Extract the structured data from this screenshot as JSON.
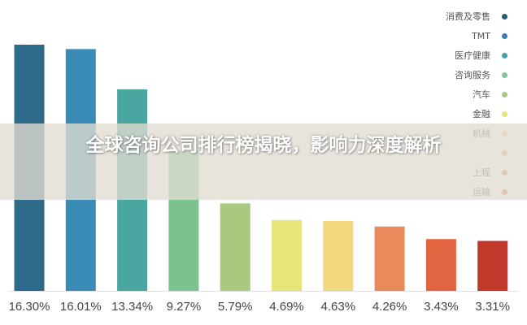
{
  "overlay_title": "全球咨询公司排行榜揭晓，影响力深度解析",
  "chart_data": {
    "type": "bar",
    "title": "",
    "xlabel": "",
    "ylabel": "",
    "ylim": [
      0,
      18
    ],
    "grid": false,
    "legend_position": "top-right",
    "categories": [
      "消费及零售",
      "TMT",
      "医疗健康",
      "咨询服务",
      "汽车",
      "金融",
      "机械",
      "",
      "上程",
      "运输"
    ],
    "values": [
      16.3,
      16.01,
      13.34,
      9.27,
      5.79,
      4.69,
      4.63,
      4.26,
      3.43,
      3.31
    ],
    "value_labels": [
      "16.30%",
      "16.01%",
      "13.34%",
      "9.27%",
      "5.79%",
      "4.69%",
      "4.63%",
      "4.26%",
      "3.43%",
      "3.31%"
    ],
    "colors": [
      "#2e6a8a",
      "#3a8bb5",
      "#4aa6a0",
      "#7cc28f",
      "#a9c97f",
      "#e8e57a",
      "#f3d77f",
      "#e88a5a",
      "#e06540",
      "#c0392b"
    ],
    "legend_dot_colors": [
      "#2e5a76",
      "#3a7fae",
      "#46a3a3",
      "#7fc8a0",
      "#b0c780",
      "#e6e679",
      "#f2c97e",
      "#e9a079",
      "#e07a55",
      "#cf6a5a"
    ]
  }
}
